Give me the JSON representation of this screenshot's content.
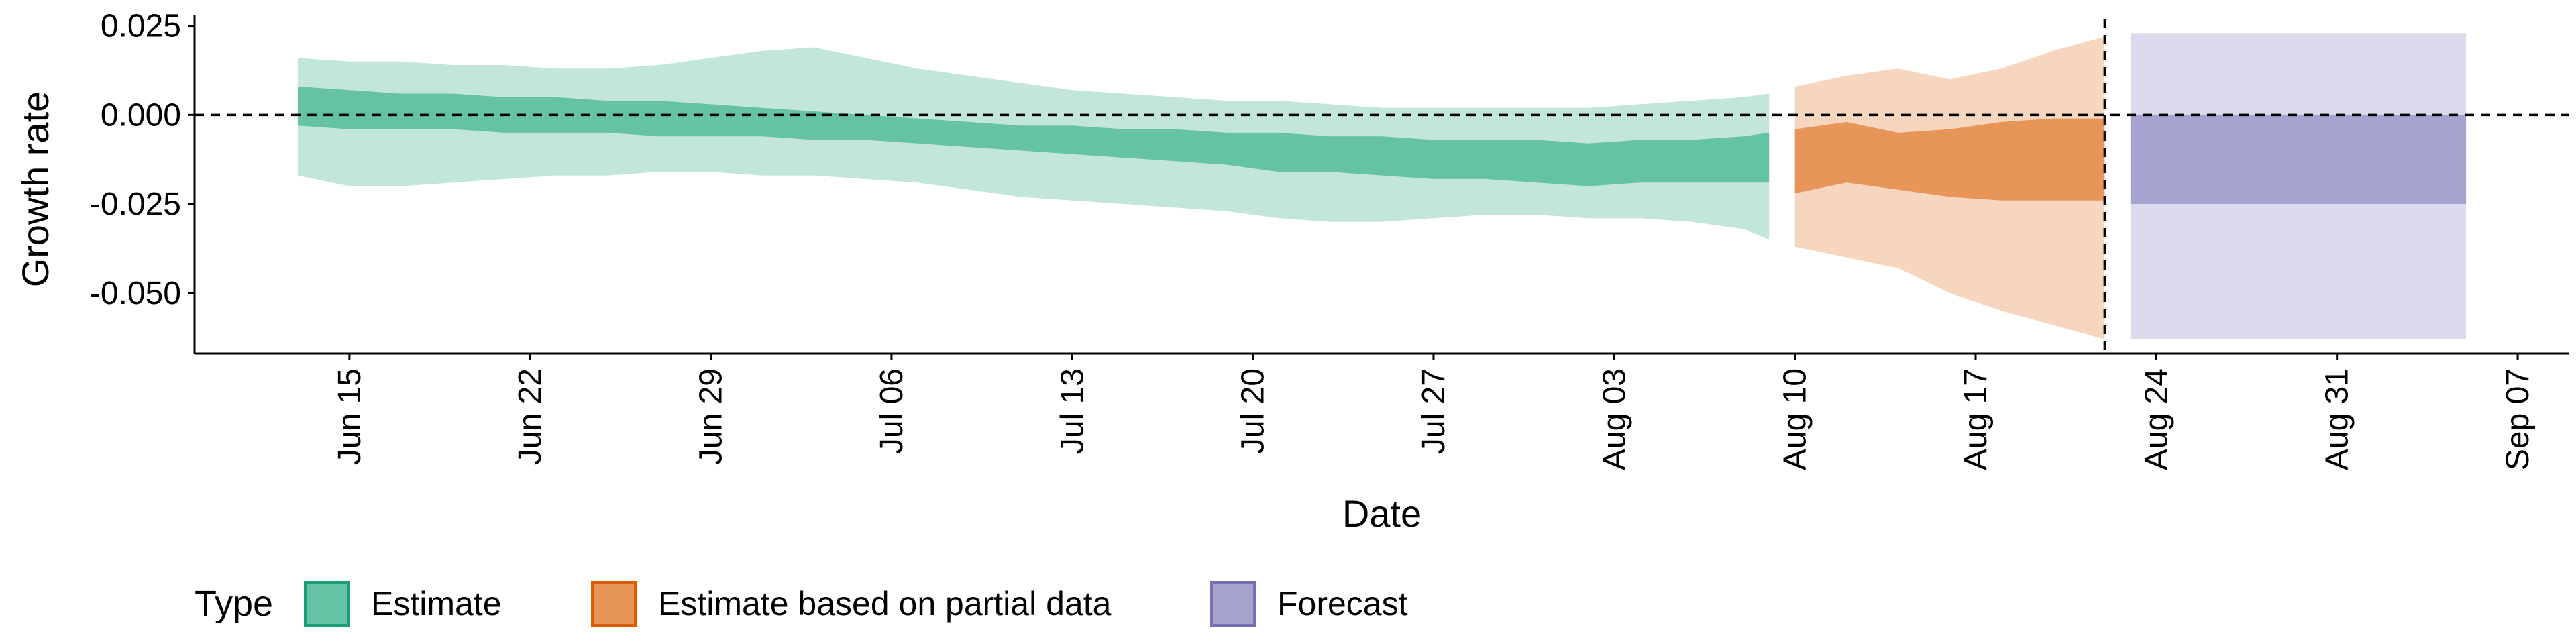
{
  "chart_data": {
    "type": "area",
    "xlabel": "Date",
    "ylabel": "Growth rate",
    "ylim": [
      -0.067,
      0.027
    ],
    "xlim": [
      "2020-06-09",
      "2020-09-09"
    ],
    "y_ticks": [
      {
        "value": 0.025,
        "label": "0.025"
      },
      {
        "value": 0.0,
        "label": "0.000"
      },
      {
        "value": -0.025,
        "label": "-0.025"
      },
      {
        "value": -0.05,
        "label": "-0.050"
      }
    ],
    "x_ticks": [
      {
        "date": "2020-06-15",
        "label": "Jun 15"
      },
      {
        "date": "2020-06-22",
        "label": "Jun 22"
      },
      {
        "date": "2020-06-29",
        "label": "Jun 29"
      },
      {
        "date": "2020-07-06",
        "label": "Jul 06"
      },
      {
        "date": "2020-07-13",
        "label": "Jul 13"
      },
      {
        "date": "2020-07-20",
        "label": "Jul 20"
      },
      {
        "date": "2020-07-27",
        "label": "Jul 27"
      },
      {
        "date": "2020-08-03",
        "label": "Aug 03"
      },
      {
        "date": "2020-08-10",
        "label": "Aug 10"
      },
      {
        "date": "2020-08-17",
        "label": "Aug 17"
      },
      {
        "date": "2020-08-24",
        "label": "Aug 24"
      },
      {
        "date": "2020-08-31",
        "label": "Aug 31"
      },
      {
        "date": "2020-09-07",
        "label": "Sep 07"
      }
    ],
    "reference_lines": {
      "horizontal_y": 0.0,
      "vertical_date": "2020-08-22",
      "style": "dashed"
    },
    "legend": {
      "title": "Type",
      "position": "bottom-left",
      "entries": [
        {
          "label": "Estimate",
          "color": "#66c2a5"
        },
        {
          "label": "Estimate based on partial data",
          "color": "#e8955a"
        },
        {
          "label": "Forecast",
          "color": "#a6a3d0"
        }
      ]
    },
    "series": [
      {
        "name": "Estimate",
        "color": "#1b9e77",
        "inner_color": "#66c2a5",
        "outer_color": "#c2e6da",
        "x": [
          "2020-06-13",
          "2020-06-15",
          "2020-06-17",
          "2020-06-19",
          "2020-06-21",
          "2020-06-23",
          "2020-06-25",
          "2020-06-27",
          "2020-06-29",
          "2020-07-01",
          "2020-07-03",
          "2020-07-05",
          "2020-07-07",
          "2020-07-09",
          "2020-07-11",
          "2020-07-13",
          "2020-07-15",
          "2020-07-17",
          "2020-07-19",
          "2020-07-21",
          "2020-07-23",
          "2020-07-25",
          "2020-07-27",
          "2020-07-29",
          "2020-07-31",
          "2020-08-02",
          "2020-08-04",
          "2020-08-06",
          "2020-08-08",
          "2020-08-09"
        ],
        "outer_lower": [
          -0.017,
          -0.02,
          -0.02,
          -0.019,
          -0.018,
          -0.017,
          -0.017,
          -0.016,
          -0.016,
          -0.017,
          -0.017,
          -0.018,
          -0.019,
          -0.021,
          -0.023,
          -0.024,
          -0.025,
          -0.026,
          -0.027,
          -0.029,
          -0.03,
          -0.03,
          -0.029,
          -0.028,
          -0.028,
          -0.029,
          -0.029,
          -0.03,
          -0.032,
          -0.035
        ],
        "inner_lower": [
          -0.003,
          -0.004,
          -0.004,
          -0.004,
          -0.005,
          -0.005,
          -0.005,
          -0.006,
          -0.006,
          -0.006,
          -0.007,
          -0.007,
          -0.008,
          -0.009,
          -0.01,
          -0.011,
          -0.012,
          -0.013,
          -0.014,
          -0.016,
          -0.016,
          -0.017,
          -0.018,
          -0.018,
          -0.019,
          -0.02,
          -0.019,
          -0.019,
          -0.019,
          -0.019
        ],
        "inner_upper": [
          0.008,
          0.007,
          0.006,
          0.006,
          0.005,
          0.005,
          0.004,
          0.004,
          0.003,
          0.002,
          0.001,
          0.0,
          -0.001,
          -0.002,
          -0.003,
          -0.003,
          -0.004,
          -0.004,
          -0.005,
          -0.005,
          -0.006,
          -0.006,
          -0.007,
          -0.007,
          -0.007,
          -0.008,
          -0.007,
          -0.007,
          -0.006,
          -0.005
        ],
        "outer_upper": [
          0.016,
          0.015,
          0.015,
          0.014,
          0.014,
          0.013,
          0.013,
          0.014,
          0.016,
          0.018,
          0.019,
          0.016,
          0.013,
          0.011,
          0.009,
          0.007,
          0.006,
          0.005,
          0.004,
          0.004,
          0.003,
          0.002,
          0.002,
          0.002,
          0.002,
          0.002,
          0.003,
          0.004,
          0.005,
          0.006
        ]
      },
      {
        "name": "Estimate based on partial data",
        "color": "#d95f02",
        "inner_color": "#e8955a",
        "outer_color": "#f6d6bf",
        "x": [
          "2020-08-10",
          "2020-08-12",
          "2020-08-14",
          "2020-08-16",
          "2020-08-18",
          "2020-08-20",
          "2020-08-22"
        ],
        "outer_lower": [
          -0.037,
          -0.04,
          -0.043,
          -0.05,
          -0.055,
          -0.059,
          -0.063
        ],
        "inner_lower": [
          -0.022,
          -0.019,
          -0.021,
          -0.023,
          -0.024,
          -0.024,
          -0.024
        ],
        "inner_upper": [
          -0.004,
          -0.002,
          -0.005,
          -0.004,
          -0.002,
          -0.001,
          -0.001
        ],
        "outer_upper": [
          0.008,
          0.011,
          0.013,
          0.01,
          0.013,
          0.018,
          0.022
        ]
      },
      {
        "name": "Forecast",
        "color": "#7570b3",
        "inner_color": "#a6a3d0",
        "outer_color": "#dcdbee",
        "x": [
          "2020-08-23",
          "2020-09-05"
        ],
        "outer_lower": [
          -0.063,
          -0.063
        ],
        "inner_lower": [
          -0.025,
          -0.025
        ],
        "inner_upper": [
          0.0,
          0.0
        ],
        "outer_upper": [
          0.023,
          0.023
        ]
      }
    ]
  }
}
